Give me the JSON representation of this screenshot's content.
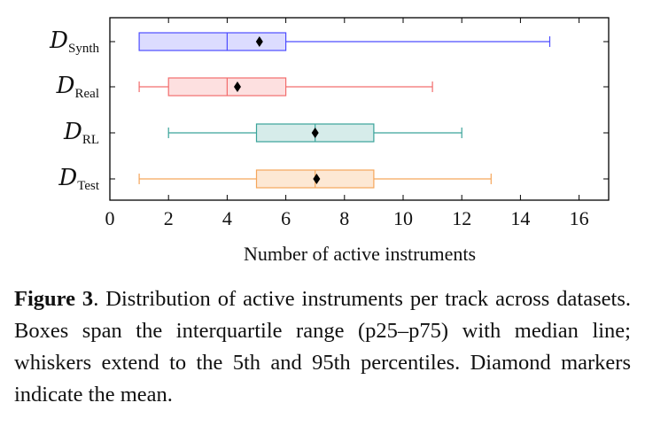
{
  "chart_data": {
    "type": "boxplot",
    "orientation": "horizontal",
    "xlabel": "Number of active instruments",
    "xlim": [
      0,
      17
    ],
    "xticks": [
      0,
      2,
      4,
      6,
      8,
      10,
      12,
      14,
      16
    ],
    "categories": [
      {
        "main": "D",
        "sub": "Synth"
      },
      {
        "main": "D",
        "sub": "Real"
      },
      {
        "main": "D",
        "sub": "RL"
      },
      {
        "main": "D",
        "sub": "Test"
      }
    ],
    "series": [
      {
        "whisker_low": 1,
        "q1": 1,
        "median": 4,
        "q3": 6,
        "whisker_high": 15,
        "mean": 5.1,
        "stroke": "#4d4dff",
        "fill": "#dcdcff"
      },
      {
        "whisker_low": 1,
        "q1": 2,
        "median": 4,
        "q3": 6,
        "whisker_high": 11,
        "mean": 4.35,
        "stroke": "#f26d6d",
        "fill": "#fde0e0"
      },
      {
        "whisker_low": 2,
        "q1": 5,
        "median": 7,
        "q3": 9,
        "whisker_high": 12,
        "mean": 7,
        "stroke": "#3aa39a",
        "fill": "#d6ecea"
      },
      {
        "whisker_low": 1,
        "q1": 5,
        "median": 7,
        "q3": 9,
        "whisker_high": 13,
        "mean": 7.05,
        "stroke": "#f5a65b",
        "fill": "#fde8d4"
      }
    ]
  },
  "caption": {
    "label": "Figure 3",
    "text": ".  Distribution of active instruments per track across datasets. Boxes span the interquartile range (p25–p75) with median line; whiskers extend to the 5th and 95th percentiles. Diamond markers indicate the mean."
  }
}
